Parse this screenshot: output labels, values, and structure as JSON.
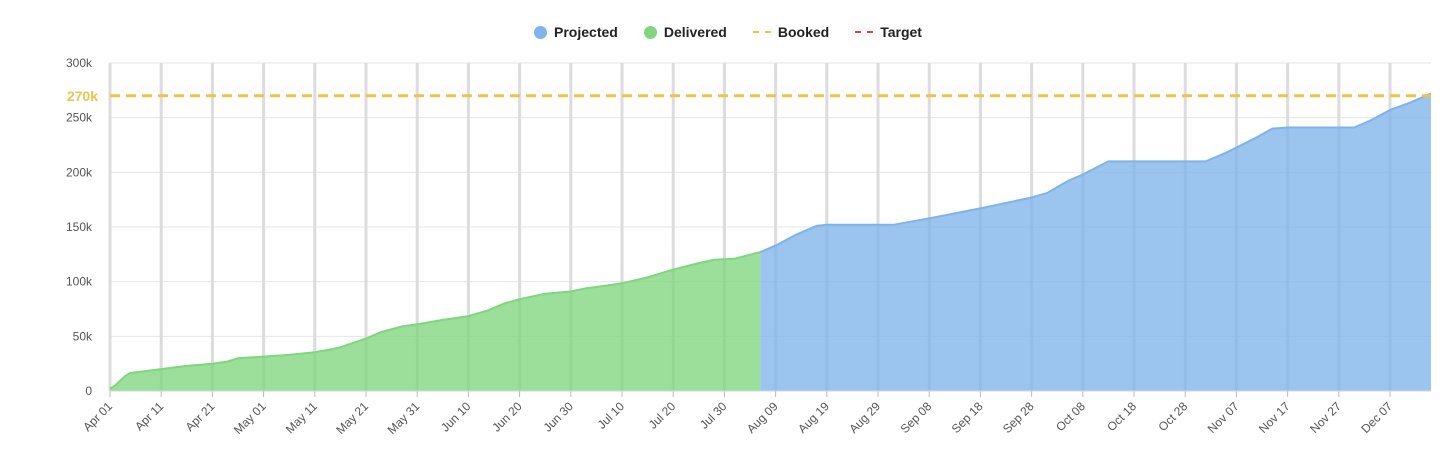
{
  "legend": [
    {
      "label": "Projected",
      "color": "#7fb3ea",
      "kind": "dot"
    },
    {
      "label": "Delivered",
      "color": "#7fd67f",
      "kind": "dot"
    },
    {
      "label": "Booked",
      "color": "#f0c24a",
      "kind": "dash"
    },
    {
      "label": "Target",
      "color": "#e8394a",
      "kind": "dash"
    }
  ],
  "chart_data": {
    "type": "area",
    "ylim": [
      0,
      300000
    ],
    "yticks": [
      {
        "value": 0,
        "label": "0"
      },
      {
        "value": 50000,
        "label": "50k"
      },
      {
        "value": 100000,
        "label": "100k"
      },
      {
        "value": 150000,
        "label": "150k"
      },
      {
        "value": 200000,
        "label": "200k"
      },
      {
        "value": 250000,
        "label": "250k"
      },
      {
        "value": 300000,
        "label": "300k"
      }
    ],
    "xlim": [
      "2024-04-01",
      "2024-12-15"
    ],
    "xticks": [
      {
        "date": "2024-04-01",
        "label": "Apr 01"
      },
      {
        "date": "2024-04-11",
        "label": "Apr 11"
      },
      {
        "date": "2024-04-21",
        "label": "Apr 21"
      },
      {
        "date": "2024-05-01",
        "label": "May 01"
      },
      {
        "date": "2024-05-11",
        "label": "May 11"
      },
      {
        "date": "2024-05-21",
        "label": "May 21"
      },
      {
        "date": "2024-05-31",
        "label": "May 31"
      },
      {
        "date": "2024-06-10",
        "label": "Jun 10"
      },
      {
        "date": "2024-06-20",
        "label": "Jun 20"
      },
      {
        "date": "2024-06-30",
        "label": "Jun 30"
      },
      {
        "date": "2024-07-10",
        "label": "Jul 10"
      },
      {
        "date": "2024-07-20",
        "label": "Jul 20"
      },
      {
        "date": "2024-07-30",
        "label": "Jul 30"
      },
      {
        "date": "2024-08-09",
        "label": "Aug 09"
      },
      {
        "date": "2024-08-19",
        "label": "Aug 19"
      },
      {
        "date": "2024-08-29",
        "label": "Aug 29"
      },
      {
        "date": "2024-09-08",
        "label": "Sep 08"
      },
      {
        "date": "2024-09-18",
        "label": "Sep 18"
      },
      {
        "date": "2024-09-28",
        "label": "Sep 28"
      },
      {
        "date": "2024-10-08",
        "label": "Oct 08"
      },
      {
        "date": "2024-10-18",
        "label": "Oct 18"
      },
      {
        "date": "2024-10-28",
        "label": "Oct 28"
      },
      {
        "date": "2024-11-07",
        "label": "Nov 07"
      },
      {
        "date": "2024-11-17",
        "label": "Nov 17"
      },
      {
        "date": "2024-11-27",
        "label": "Nov 27"
      },
      {
        "date": "2024-12-07",
        "label": "Dec 07"
      }
    ],
    "series": [
      {
        "name": "Delivered",
        "color": "#7fd67f",
        "points": [
          [
            "2024-04-01",
            2000
          ],
          [
            "2024-04-02",
            5000
          ],
          [
            "2024-04-04",
            14000
          ],
          [
            "2024-04-05",
            16500
          ],
          [
            "2024-04-11",
            20000
          ],
          [
            "2024-04-16",
            23000
          ],
          [
            "2024-04-21",
            25000
          ],
          [
            "2024-04-24",
            27000
          ],
          [
            "2024-04-26",
            30000
          ],
          [
            "2024-05-01",
            31500
          ],
          [
            "2024-05-06",
            33000
          ],
          [
            "2024-05-11",
            35500
          ],
          [
            "2024-05-14",
            38000
          ],
          [
            "2024-05-16",
            40000
          ],
          [
            "2024-05-21",
            48000
          ],
          [
            "2024-05-24",
            54000
          ],
          [
            "2024-05-28",
            59000
          ],
          [
            "2024-05-31",
            61000
          ],
          [
            "2024-06-05",
            65000
          ],
          [
            "2024-06-10",
            68500
          ],
          [
            "2024-06-14",
            74000
          ],
          [
            "2024-06-17",
            80000
          ],
          [
            "2024-06-20",
            84000
          ],
          [
            "2024-06-25",
            89000
          ],
          [
            "2024-06-30",
            91000
          ],
          [
            "2024-07-03",
            94000
          ],
          [
            "2024-07-08",
            97000
          ],
          [
            "2024-07-10",
            98500
          ],
          [
            "2024-07-15",
            104000
          ],
          [
            "2024-07-20",
            111000
          ],
          [
            "2024-07-25",
            117000
          ],
          [
            "2024-07-28",
            120000
          ],
          [
            "2024-08-01",
            121000
          ],
          [
            "2024-08-06",
            127000
          ]
        ]
      },
      {
        "name": "Projected",
        "color": "#7fb3ea",
        "points": [
          [
            "2024-08-06",
            127000
          ],
          [
            "2024-08-09",
            133000
          ],
          [
            "2024-08-13",
            143000
          ],
          [
            "2024-08-17",
            151000
          ],
          [
            "2024-08-19",
            152000
          ],
          [
            "2024-08-29",
            152000
          ],
          [
            "2024-09-01",
            152000
          ],
          [
            "2024-09-08",
            158000
          ],
          [
            "2024-09-18",
            167000
          ],
          [
            "2024-09-28",
            177000
          ],
          [
            "2024-10-01",
            181000
          ],
          [
            "2024-10-05",
            192000
          ],
          [
            "2024-10-08",
            198000
          ],
          [
            "2024-10-13",
            210000
          ],
          [
            "2024-10-18",
            210000
          ],
          [
            "2024-10-28",
            210000
          ],
          [
            "2024-11-01",
            210000
          ],
          [
            "2024-11-05",
            218000
          ],
          [
            "2024-11-11",
            232000
          ],
          [
            "2024-11-14",
            240000
          ],
          [
            "2024-11-17",
            241000
          ],
          [
            "2024-11-27",
            241000
          ],
          [
            "2024-11-30",
            241000
          ],
          [
            "2024-12-03",
            247000
          ],
          [
            "2024-12-07",
            257000
          ],
          [
            "2024-12-11",
            264000
          ],
          [
            "2024-12-15",
            272000
          ]
        ]
      }
    ],
    "reference_lines": [
      {
        "name": "Booked",
        "value": 270000,
        "label": "270k",
        "color": "#f0c24a"
      }
    ]
  }
}
